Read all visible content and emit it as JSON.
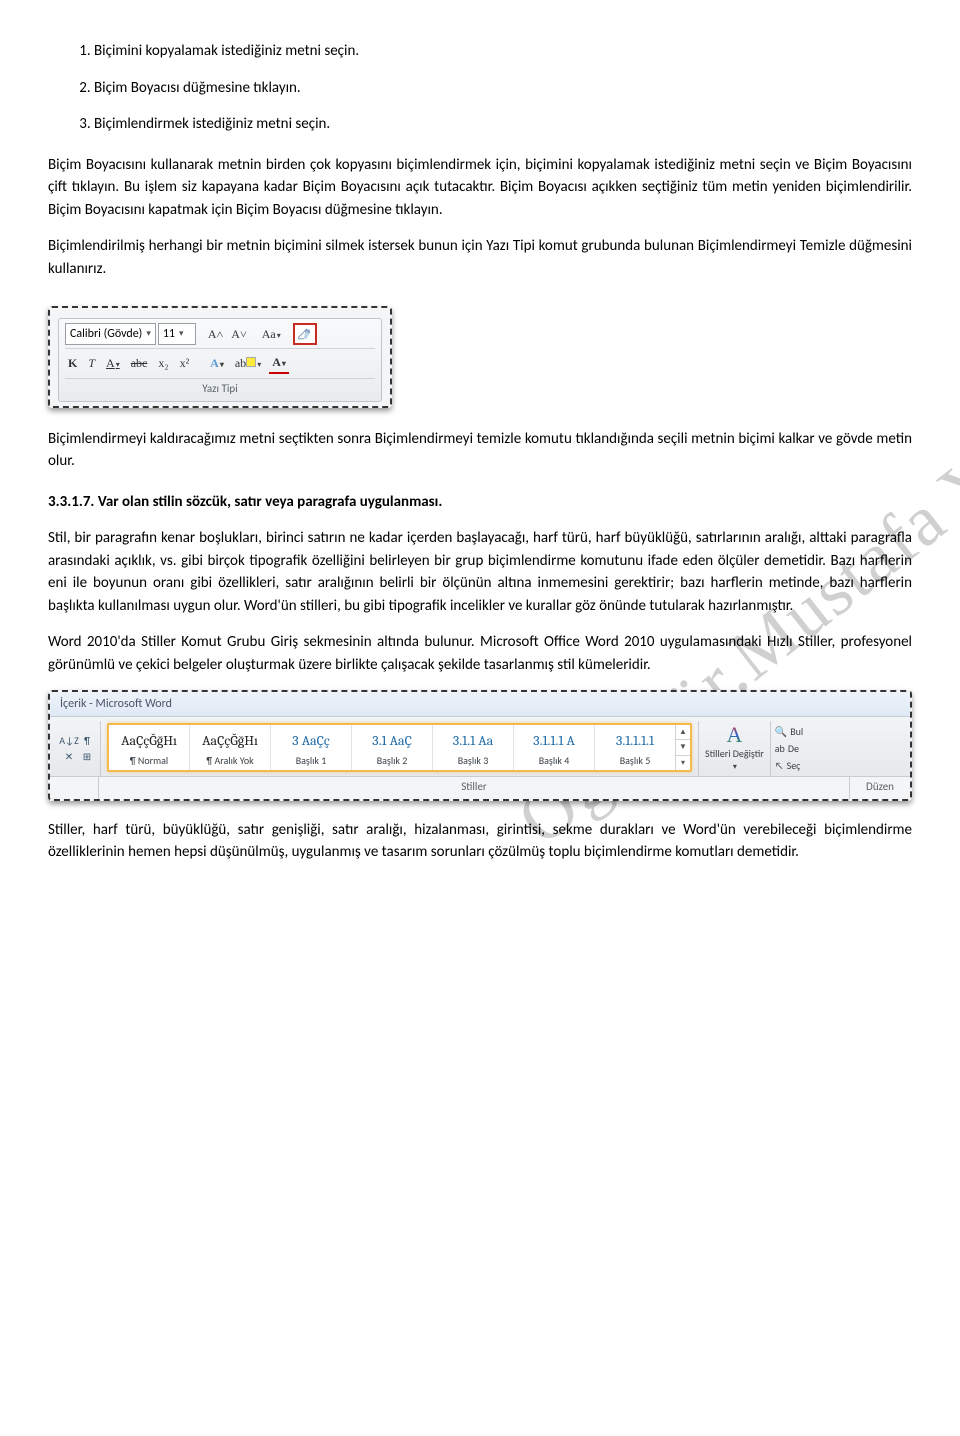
{
  "watermark": "Öğr.Gör.Mustafa YILMAZ",
  "steps": {
    "s1": "Biçimini kopyalamak istediğiniz metni seçin.",
    "s2": "Biçim Boyacısı düğmesine tıklayın.",
    "s3": "Biçimlendirmek istediğiniz metni seçin."
  },
  "paras": {
    "p1": "Biçim Boyacısını kullanarak metnin birden çok kopyasını biçimlendirmek için, biçimini kopyalamak istediğiniz metni seçin ve Biçim Boyacısını çift tıklayın. Bu işlem siz kapayana kadar Biçim Boyacısını açık tutacaktır. Biçim Boyacısı açıkken seçtiğiniz tüm metin yeniden biçimlendirilir. Biçim Boyacısını kapatmak için Biçim Boyacısı düğmesine tıklayın.",
    "p2": "Biçimlendirilmiş herhangi bir metnin biçimini silmek istersek bunun için Yazı Tipi komut grubunda bulunan Biçimlendirmeyi Temizle düğmesini kullanırız.",
    "p3": "Biçimlendirmeyi kaldıracağımız metni seçtikten sonra Biçimlendirmeyi temizle komutu tıklandığında seçili metnin biçimi kalkar ve gövde metin olur.",
    "p4": "Stil, bir paragrafın kenar boşlukları, birinci satırın ne kadar içerden başlayacağı, harf türü, harf büyüklüğü, satırlarının aralığı, alttaki paragrafla arasındaki açıklık, vs. gibi birçok tipografik özelliğini belirleyen bir grup biçimlendirme komutunu ifade eden ölçüler demetidir. Bazı harflerin eni ile boyunun oranı gibi özellikleri, satır aralığının belirli bir ölçünün altına inmemesini gerektirir; bazı harflerin metinde, bazı harflerin başlıkta kullanılması uygun olur. Word'ün stilleri, bu gibi tipografik incelikler ve kurallar göz önünde tutularak hazırlanmıştır.",
    "p5": "Word 2010'da Stiller Komut Grubu Giriş sekmesinin altında bulunur. Microsoft Office Word 2010 uygulamasındaki Hızlı Stiller, profesyonel görünümlü ve çekici belgeler oluşturmak üzere birlikte çalışacak şekilde tasarlanmış stil kümeleridir.",
    "p6": "Stiller, harf türü, büyüklüğü, satır genişliği, satır aralığı, hizalanması, girintisi, sekme durakları ve Word'ün verebileceği biçimlendirme özelliklerinin hemen hepsi düşünülmüş, uygulanmış ve tasarım sorunları çözülmüş toplu biçimlendirme komutları demetidir."
  },
  "heading": "3.3.1.7. Var olan stilin sözcük, satır veya paragrafa uygulanması.",
  "font_ribbon": {
    "font_name": "Calibri (Gövde)",
    "font_size": "11",
    "grow": "A˄",
    "shrink": "A˅",
    "case": "Aa",
    "bold": "K",
    "italic": "T",
    "underline": "A",
    "strike": "abc",
    "sub": "x₂",
    "sup": "x²",
    "texteffect": "A",
    "highlight": "ab",
    "fontcolor": "A",
    "group_label": "Yazı Tipi"
  },
  "styles_ribbon": {
    "title": "İçerik - Microsoft Word",
    "left_glyphs": {
      "sort": "A↓Z",
      "para": "¶",
      "clear": "✕",
      "border": "⊞ "
    },
    "swatches": [
      {
        "sample": "AaÇçĞğHı",
        "label": "¶ Normal",
        "dark": true
      },
      {
        "sample": "AaÇçĞğHı",
        "label": "¶ Aralık Yok",
        "dark": true
      },
      {
        "sample": "3  AaÇç",
        "label": "Başlık 1",
        "dark": false
      },
      {
        "sample": "3.1  AaÇ",
        "label": "Başlık 2",
        "dark": false
      },
      {
        "sample": "3.1.1  Aa",
        "label": "Başlık 3",
        "dark": false
      },
      {
        "sample": "3.1.1.1  A",
        "label": "Başlık 4",
        "dark": false
      },
      {
        "sample": "3.1.1.1.1",
        "label": "Başlık 5",
        "dark": false
      }
    ],
    "change_label": "Stilleri Değiştir",
    "group_label_styles": "Stiller",
    "group_label_edit": "Düzen",
    "right_items": {
      "bul": "Bul",
      "degistir": "De",
      "sec": "Seç"
    }
  }
}
